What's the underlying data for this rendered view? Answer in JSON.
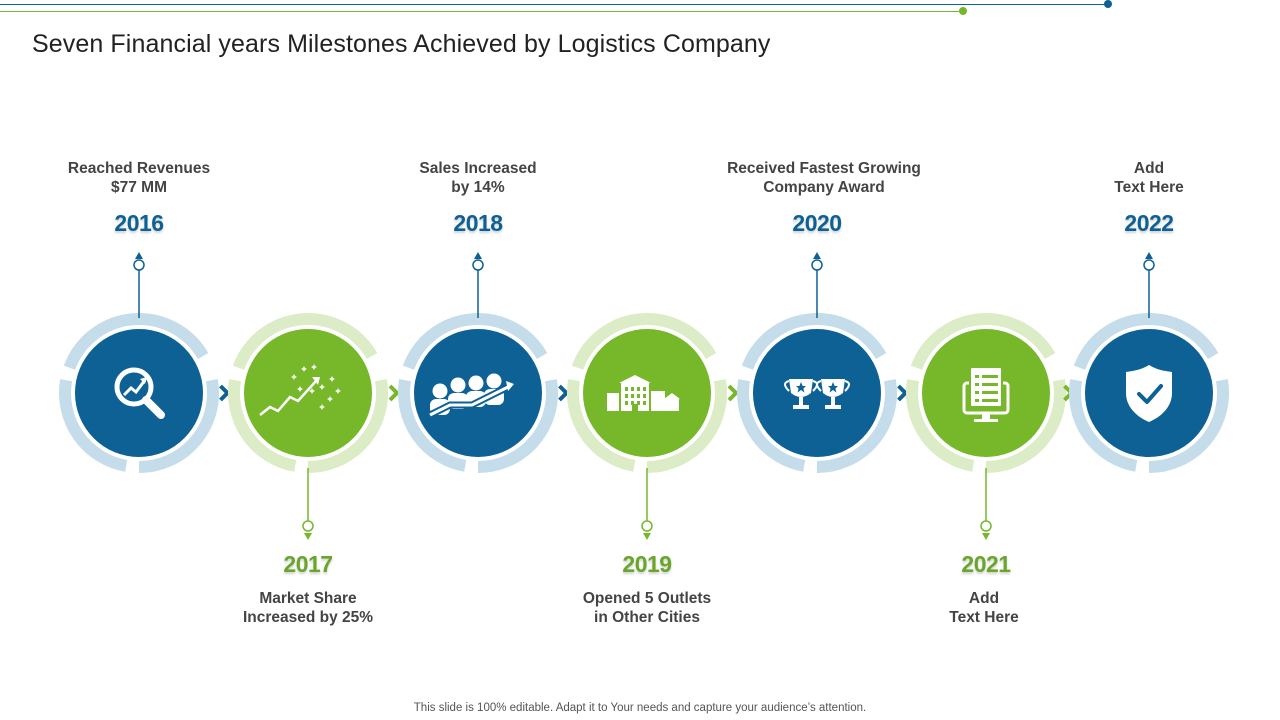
{
  "slide": {
    "title": "Seven Financial years Milestones Achieved by Logistics Company",
    "footer": "This slide is 100% editable. Adapt it to Your needs and capture your audience’s attention."
  },
  "colors": {
    "blue": "#0d6195",
    "green": "#76b82a",
    "blue_ring": "#c5dceb",
    "green_ring": "#dbecc6"
  },
  "milestones": [
    {
      "year": "2016",
      "line1": "Reached Revenues",
      "line2": "$77 MM",
      "color": "blue",
      "icon": "magnifier-chart-icon"
    },
    {
      "year": "2017",
      "line1": "Market Share",
      "line2": "Increased by 25%",
      "color": "green",
      "icon": "growth-sparkle-icon"
    },
    {
      "year": "2018",
      "line1": "Sales Increased",
      "line2": "by 14%",
      "color": "blue",
      "icon": "team-growth-icon"
    },
    {
      "year": "2019",
      "line1": "Opened 5 Outlets",
      "line2": "in Other Cities",
      "color": "green",
      "icon": "buildings-icon"
    },
    {
      "year": "2020",
      "line1": "Received Fastest Growing",
      "line2": "Company Award",
      "color": "blue",
      "icon": "trophies-icon"
    },
    {
      "year": "2021",
      "line1": "Add",
      "line2": "Text Here",
      "color": "green",
      "icon": "monitor-document-icon"
    },
    {
      "year": "2022",
      "line1": "Add",
      "line2": "Text Here",
      "color": "blue",
      "icon": "shield-check-icon"
    }
  ]
}
